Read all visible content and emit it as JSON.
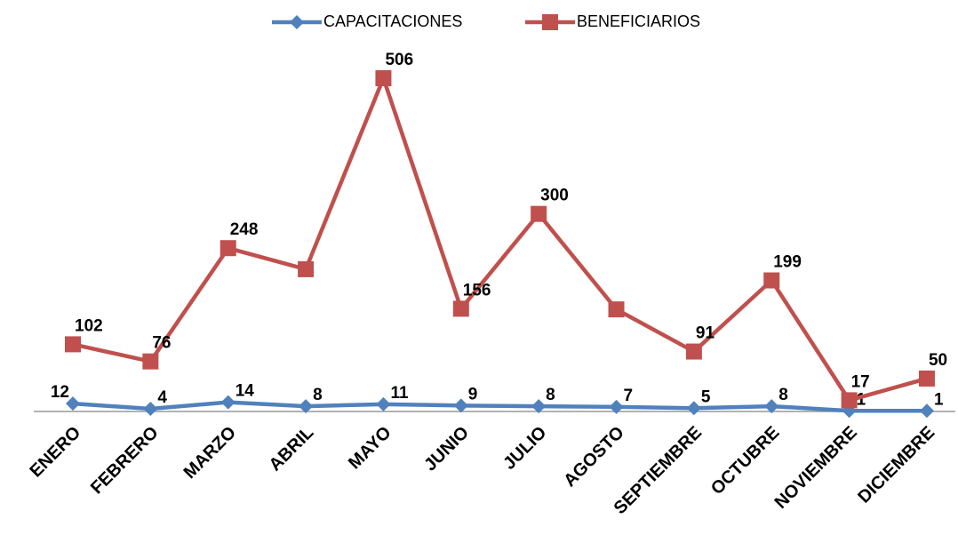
{
  "chart_data": {
    "type": "line",
    "categories": [
      "ENERO",
      "FEBRERO",
      "MARZO",
      "ABRIL",
      "MAYO",
      "JUNIO",
      "JULIO",
      "AGOSTO",
      "SEPTIEMBRE",
      "OCTUBRE",
      "NOVIEMBRE",
      "DICIEMBRE"
    ],
    "series": [
      {
        "name": "CAPACITACIONES",
        "color": "#4f81bd",
        "marker": "diamond",
        "values": [
          12,
          4,
          14,
          8,
          11,
          9,
          8,
          7,
          5,
          8,
          1,
          1
        ],
        "value_labels": [
          "12",
          "4",
          "14",
          "8",
          "11",
          "9",
          "8",
          "7",
          "5",
          "8",
          "1",
          "1"
        ]
      },
      {
        "name": "BENEFICIARIOS",
        "color": "#c0504d",
        "marker": "square",
        "values": [
          102,
          76,
          248,
          216,
          506,
          156,
          300,
          155,
          91,
          199,
          17,
          50
        ],
        "value_labels": [
          "102",
          "76",
          "248",
          null,
          "506",
          "156",
          "300",
          null,
          "91",
          "199",
          "17",
          "50"
        ]
      }
    ],
    "ylim": [
      0,
      560
    ],
    "legend": "top"
  }
}
